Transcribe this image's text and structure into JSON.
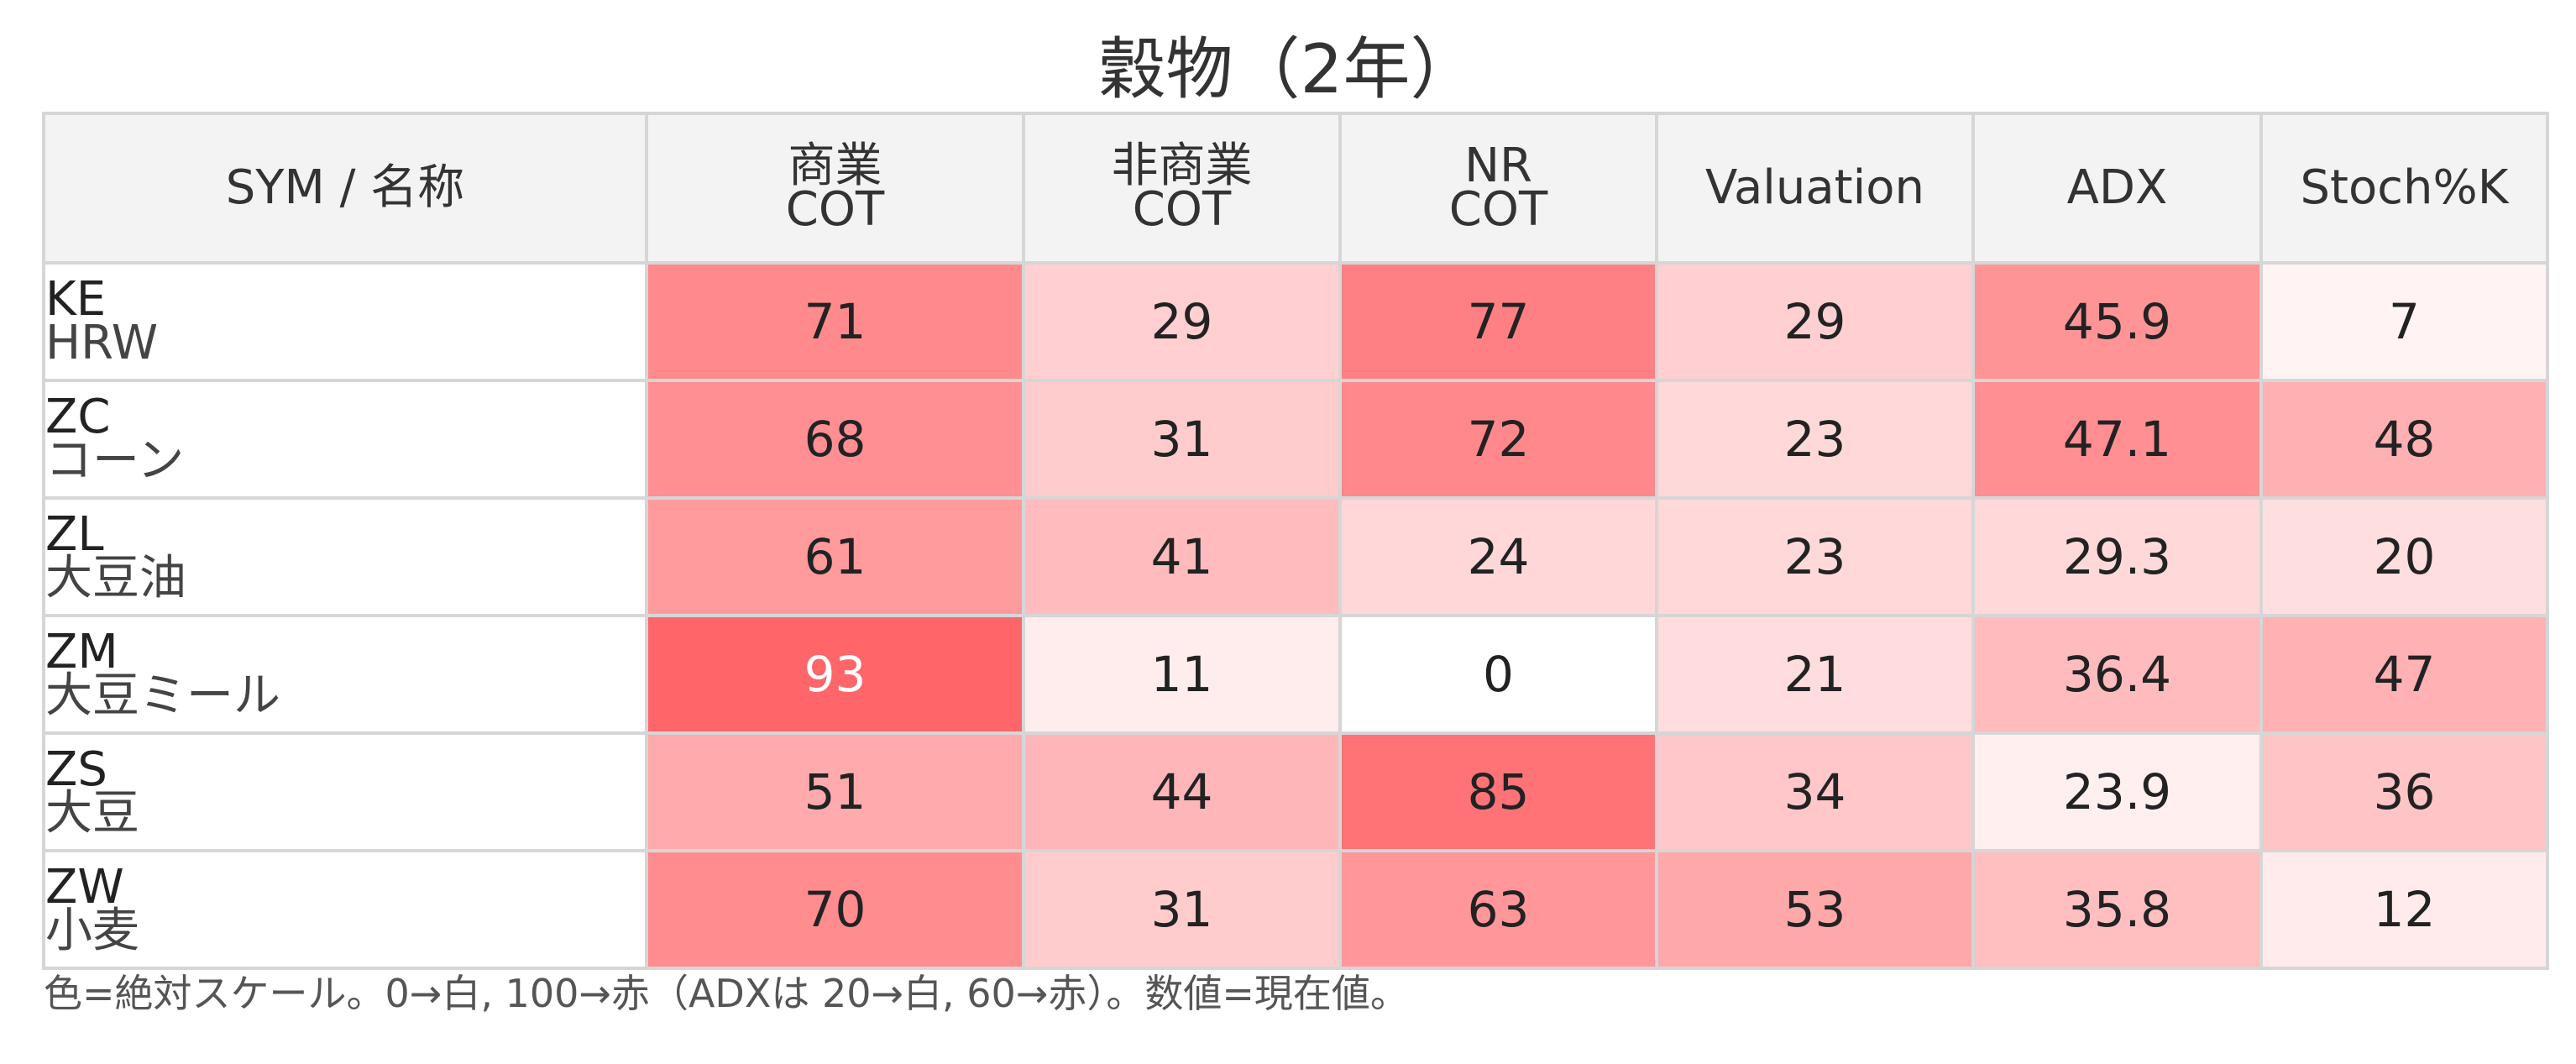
{
  "chart_data": {
    "type": "heatmap",
    "title": "穀物（2年）",
    "header_label": "SYM / 名称",
    "columns": [
      {
        "lines": [
          "商業",
          "COT"
        ]
      },
      {
        "lines": [
          "非商業",
          "COT"
        ]
      },
      {
        "lines": [
          "NR",
          "COT"
        ]
      },
      {
        "lines": [
          "Valuation"
        ]
      },
      {
        "lines": [
          "ADX"
        ]
      },
      {
        "lines": [
          "Stoch%K"
        ]
      }
    ],
    "rows": [
      {
        "sym": "KE",
        "name": "HRW",
        "values": [
          "71",
          "29",
          "77",
          "29",
          "45.9",
          "7"
        ]
      },
      {
        "sym": "ZC",
        "name": "コーン",
        "values": [
          "68",
          "31",
          "72",
          "23",
          "47.1",
          "48"
        ]
      },
      {
        "sym": "ZL",
        "name": "大豆油",
        "values": [
          "61",
          "41",
          "24",
          "23",
          "29.3",
          "20"
        ]
      },
      {
        "sym": "ZM",
        "name": "大豆ミール",
        "values": [
          "93",
          "11",
          "0",
          "21",
          "36.4",
          "47"
        ]
      },
      {
        "sym": "ZS",
        "name": "大豆",
        "values": [
          "51",
          "44",
          "85",
          "34",
          "23.9",
          "36"
        ]
      },
      {
        "sym": "ZW",
        "name": "小麦",
        "values": [
          "70",
          "31",
          "63",
          "53",
          "35.8",
          "12"
        ]
      }
    ],
    "color_scale": {
      "low": "#ffffff",
      "high": "#ff5a5f",
      "min": 0,
      "max": 100,
      "adx_min": 20,
      "adx_max": 60
    },
    "note": "色=絶対スケール。0→白, 100→赤（ADXは 20→白, 60→赤）。数値=現在値。"
  }
}
